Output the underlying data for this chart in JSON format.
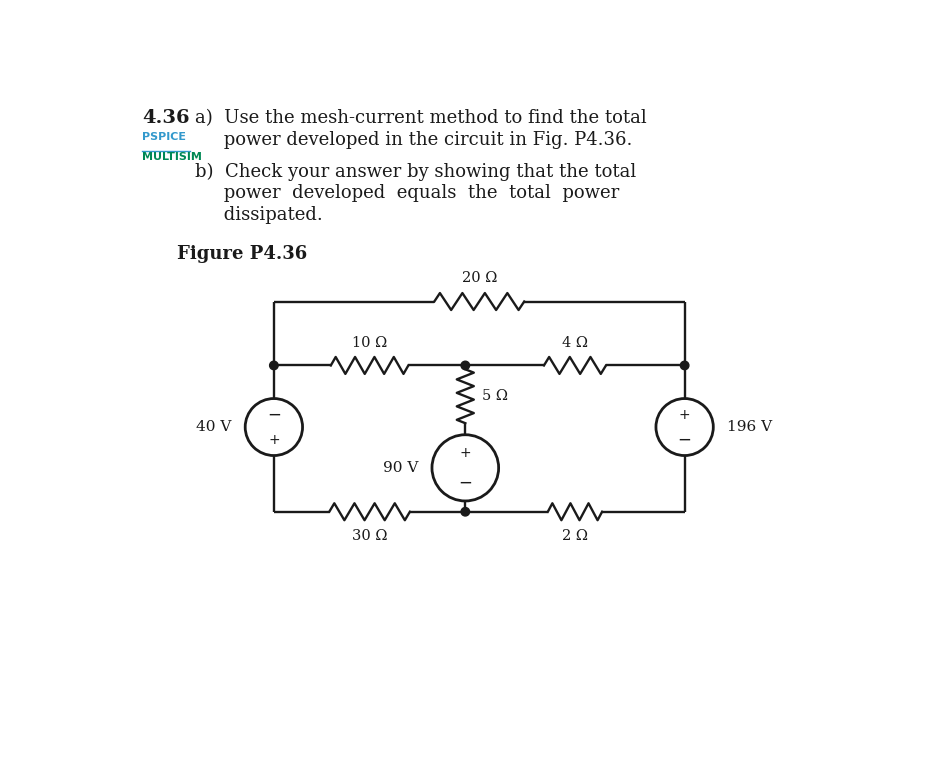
{
  "title_number": "4.36",
  "label_pspice": "PSPICE",
  "label_multisim": "MULTISIM",
  "figure_label": "Figure P4.36",
  "bg_color": "#ffffff",
  "line_color": "#1a1a1a",
  "resistor_20": "20 Ω",
  "resistor_10": "10 Ω",
  "resistor_4": "4 Ω",
  "resistor_5": "5 Ω",
  "resistor_30": "30 Ω",
  "resistor_2": "2 Ω",
  "source_40": "40 V",
  "source_90": "90 V",
  "source_196": "196 V",
  "pspice_color": "#3399cc",
  "multisim_color": "#008855",
  "text_a1": "a)  Use the mesh-current method to find the total",
  "text_a2": "     power developed in the circuit in Fig. P4.36.",
  "text_b1": "b)  Check your answer by showing that the total",
  "text_b2": "     power  developed  equals  the  total  power",
  "text_b3": "     dissipated."
}
